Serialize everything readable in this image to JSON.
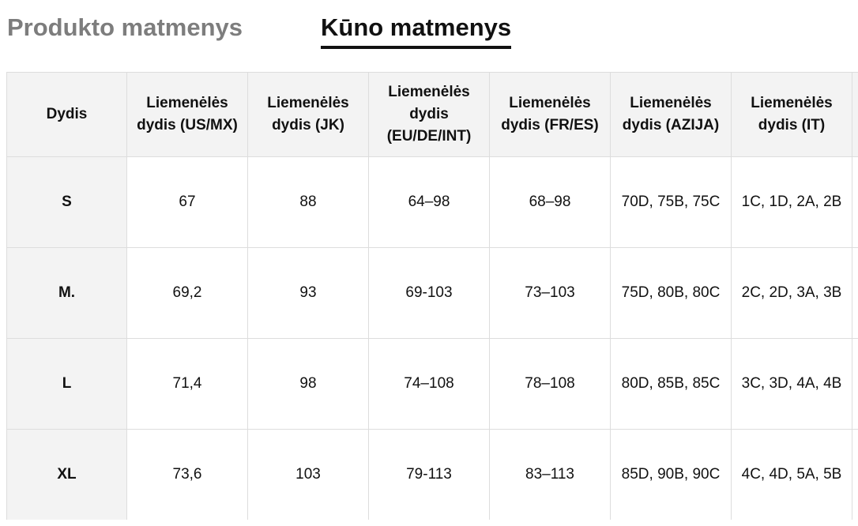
{
  "tabs": {
    "product_label": "Produkto matmenys",
    "body_label": "Kūno matmenys",
    "active": "body"
  },
  "table": {
    "headers": [
      "Dydis",
      "Liemenėlės dydis (US/MX)",
      "Liemenėlės dydis (JK)",
      "Liemenėlės dydis (EU/DE/INT)",
      "Liemenėlės dydis (FR/ES)",
      "Liemenėlės dydis (AZIJA)",
      "Liemenėlės dydis (IT)",
      ""
    ],
    "rows": [
      [
        "S",
        "67",
        "88",
        "64–98",
        "68–98",
        "70D, 75B, 75C",
        "1C, 1D, 2A, 2B",
        ""
      ],
      [
        "M.",
        "69,2",
        "93",
        "69-103",
        "73–103",
        "75D, 80B, 80C",
        "2C, 2D, 3A, 3B",
        ""
      ],
      [
        "L",
        "71,4",
        "98",
        "74–108",
        "78–108",
        "80D, 85B, 85C",
        "3C, 3D, 4A, 4B",
        ""
      ],
      [
        "XL",
        "73,6",
        "103",
        "79-113",
        "83–113",
        "85D, 90B, 90C",
        "4C, 4D, 5A, 5B",
        ""
      ]
    ]
  },
  "colors": {
    "header_bg": "#f3f3f3",
    "border": "#dddddd",
    "inactive_tab": "#7d7d7d",
    "active_tab": "#111111"
  }
}
